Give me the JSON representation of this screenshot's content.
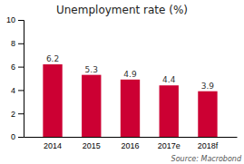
{
  "chart_data": {
    "type": "bar",
    "title": "Unemployment rate (%)",
    "categories": [
      "2014",
      "2015",
      "2016",
      "2017e",
      "2018f"
    ],
    "values": [
      6.2,
      5.3,
      4.9,
      4.4,
      3.9
    ],
    "color": "#cc0033",
    "ylim": [
      0,
      10
    ],
    "yticks": [
      0,
      2,
      4,
      6,
      8,
      10
    ],
    "grid": false,
    "data_labels": true,
    "annotations": [
      "Source: Macrobond"
    ]
  }
}
